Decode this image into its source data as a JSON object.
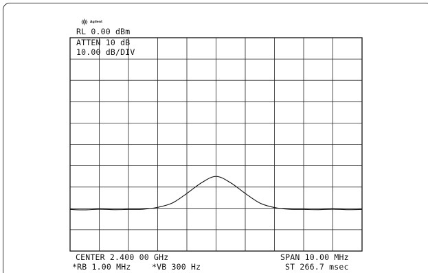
{
  "screen": {
    "brand": "Agilent",
    "reference_level": "RL 0.00 dBm",
    "attenuation": "ATTEN 10 dB",
    "scale": "10.00 dB/DIV",
    "center_frequency": "CENTER 2.400 00 GHz",
    "span": "SPAN 10.00 MHz",
    "resolution_bandwidth": "*RB 1.00 MHz",
    "video_bandwidth": "*VB 300 Hz",
    "sweep_time": "ST 266.7 msec"
  },
  "chart_data": {
    "type": "line",
    "title": "",
    "xlabel": "",
    "ylabel": "",
    "x_unit": "MHz",
    "y_unit": "dBm",
    "xlim": [
      2395,
      2405
    ],
    "ylim": [
      -100,
      0
    ],
    "grid": true,
    "grid_divisions": {
      "x": 10,
      "y": 10
    },
    "series": [
      {
        "x": [
          2395.0,
          2395.5,
          2396.0,
          2396.5,
          2397.0,
          2397.5,
          2398.0,
          2398.5,
          2399.0,
          2399.5,
          2400.0,
          2400.5,
          2401.0,
          2401.5,
          2402.0,
          2402.5,
          2403.0,
          2403.5,
          2404.0,
          2404.5,
          2405.0
        ],
        "values": [
          -80.5,
          -80.7,
          -80.4,
          -80.6,
          -80.5,
          -80.4,
          -79.5,
          -77.5,
          -73.0,
          -68.0,
          -65.0,
          -68.0,
          -73.0,
          -77.5,
          -79.6,
          -80.4,
          -80.5,
          -80.6,
          -80.4,
          -80.6,
          -80.5
        ]
      }
    ]
  }
}
